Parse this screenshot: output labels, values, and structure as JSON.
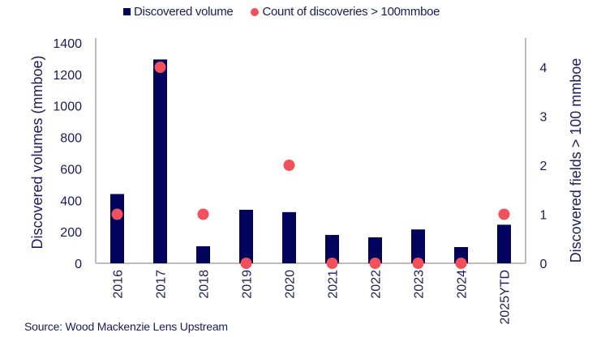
{
  "legend": {
    "bar_label": "Discovered volume",
    "dot_label": "Count of discoveries > 100mmboe"
  },
  "axes": {
    "left_title": "Discovered volumes (mmboe)",
    "right_title": "Discovered fields > 100 mmboe",
    "left_ticks": [
      "0",
      "200",
      "400",
      "600",
      "800",
      "1000",
      "1200",
      "1400"
    ],
    "right_ticks": [
      "0",
      "1",
      "2",
      "3",
      "4"
    ]
  },
  "source": "Source: Wood Mackenzie Lens Upstream",
  "colors": {
    "bar": "#02035c",
    "dot": "#f4505a",
    "text": "#1b1a5e",
    "axis": "#a6a6a6"
  },
  "chart_data": {
    "type": "bar",
    "title": "",
    "categories": [
      "2016",
      "2017",
      "2018",
      "2019",
      "2020",
      "2021",
      "2022",
      "2023",
      "2024",
      "2025YTD"
    ],
    "series": [
      {
        "name": "Discovered volume",
        "type": "bar",
        "axis": "left",
        "values": [
          440,
          1295,
          108,
          340,
          325,
          180,
          165,
          215,
          103,
          245
        ]
      },
      {
        "name": "Count of discoveries > 100mmboe",
        "type": "scatter",
        "axis": "right",
        "values": [
          1,
          4,
          1,
          0,
          2,
          0,
          0,
          0,
          0,
          1
        ]
      }
    ],
    "xlabel": "",
    "ylabel": "Discovered volumes (mmboe)",
    "y2label": "Discovered fields > 100 mmboe",
    "ylim": [
      0,
      1400
    ],
    "y2lim": [
      0,
      4.6
    ],
    "grid": false,
    "legend_position": "top"
  }
}
